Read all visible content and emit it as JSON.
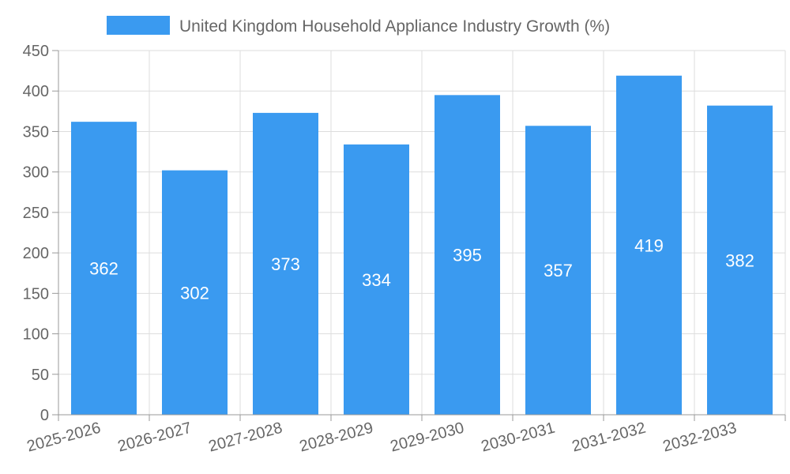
{
  "chart_data": {
    "type": "bar",
    "title": "",
    "xlabel": "",
    "ylabel": "",
    "categories": [
      "2025-2026",
      "2026-2027",
      "2027-2028",
      "2028-2029",
      "2029-2030",
      "2030-2031",
      "2031-2032",
      "2032-2033"
    ],
    "series": [
      {
        "name": "United Kingdom Household Appliance Industry Growth (%)",
        "values": [
          362,
          302,
          373,
          334,
          395,
          357,
          419,
          382
        ],
        "color": "#3a9af0"
      }
    ],
    "ylim": [
      0,
      450
    ],
    "yticks": [
      "0",
      "50",
      "100",
      "150",
      "200",
      "250",
      "300",
      "350",
      "400",
      "450"
    ],
    "grid": true,
    "legend_position": "top-center",
    "data_labels": [
      "362",
      "302",
      "373",
      "334",
      "395",
      "357",
      "419",
      "382"
    ]
  }
}
